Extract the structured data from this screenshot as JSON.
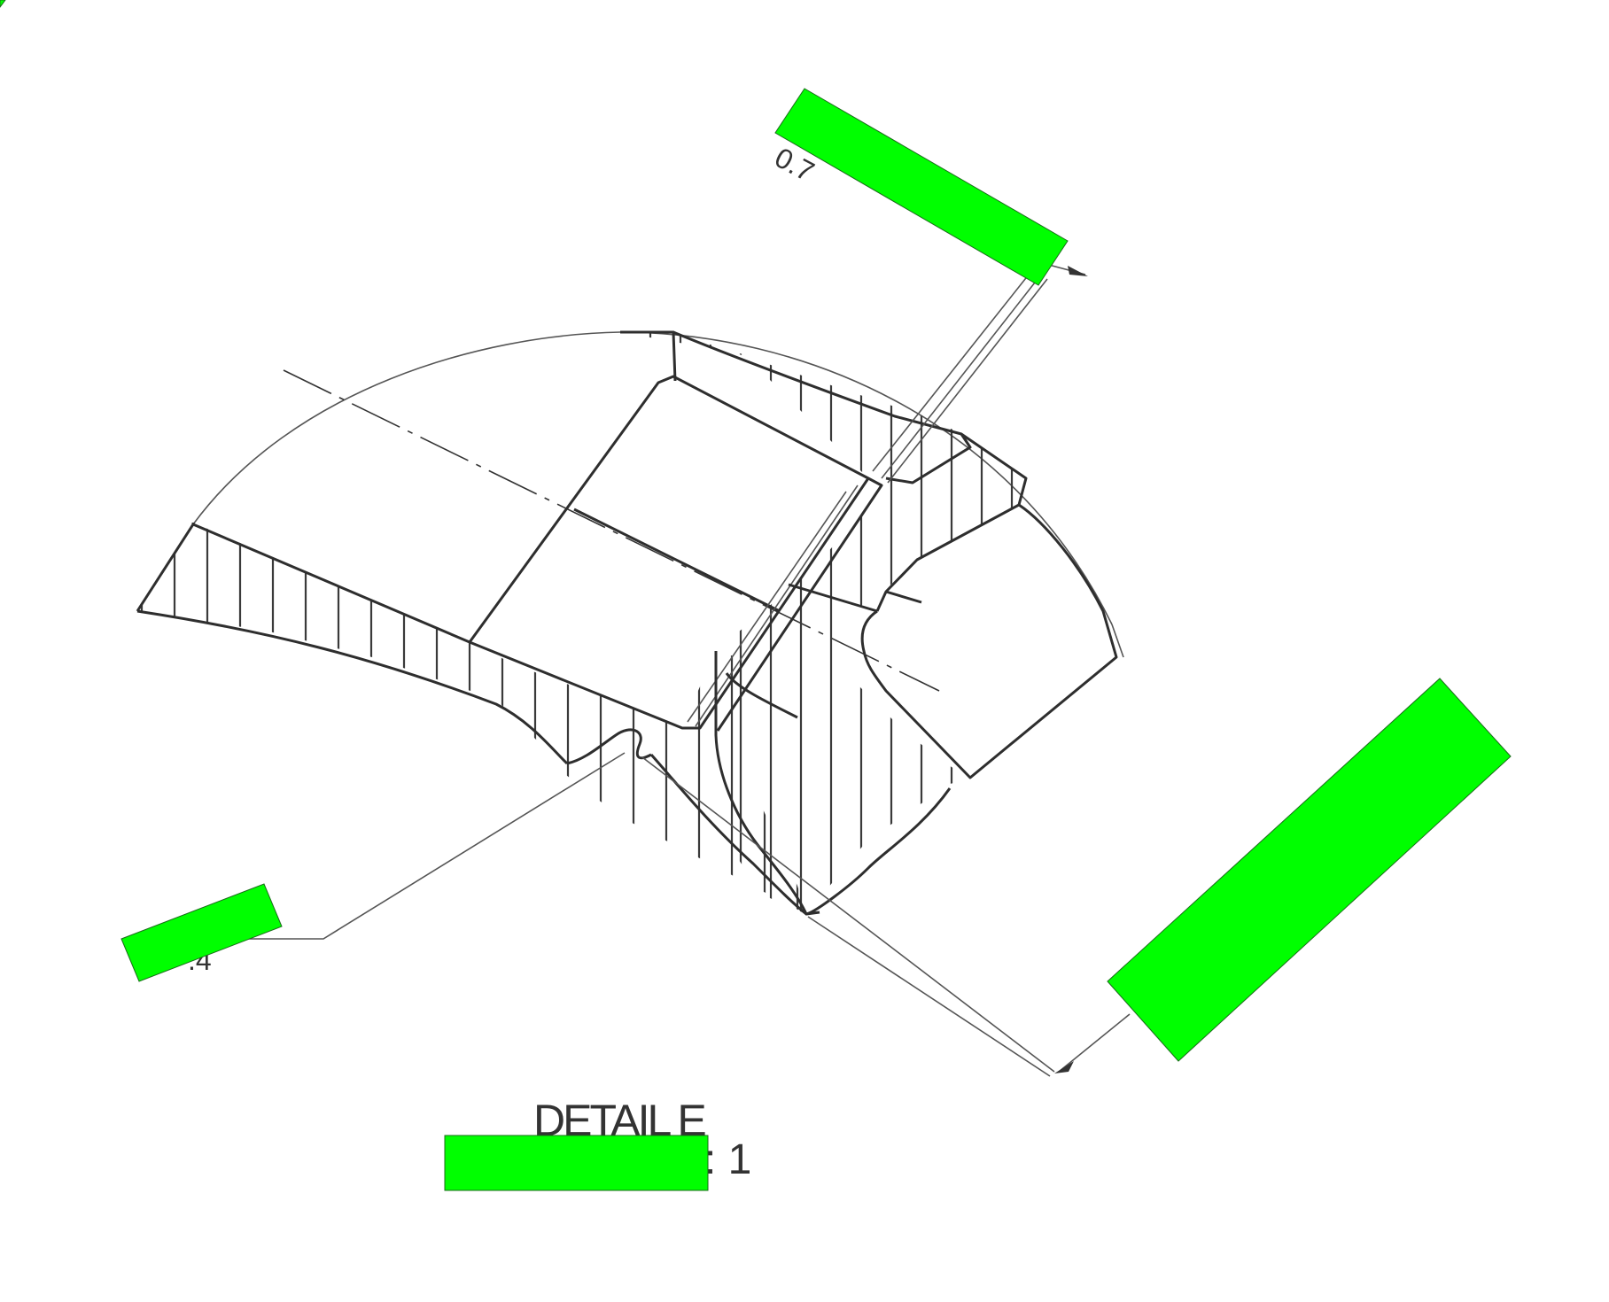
{
  "detail": {
    "title": "DETAIL E",
    "scale_visible": ": 1"
  },
  "dimensions": {
    "top_label_partial": "0.7",
    "left_label_partial": ".4"
  },
  "colors": {
    "line": "#2e2e2e",
    "redaction": "#00ff00",
    "background": "#ffffff"
  }
}
